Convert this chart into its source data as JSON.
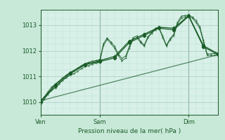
{
  "bg_color": "#c8e8d8",
  "plot_bg_color": "#d8f0e8",
  "grid_color_major": "#a8ccbc",
  "grid_color_minor": "#b8dece",
  "line_color": "#1a5c28",
  "xlabel": "Pression niveau de la mer( hPa )",
  "ylim": [
    1009.5,
    1013.6
  ],
  "xlim": [
    0,
    48
  ],
  "ytick_positions": [
    1010,
    1011,
    1012,
    1013
  ],
  "ytick_labels": [
    "1010",
    "1011",
    "1012",
    "1013"
  ],
  "xtick_positions": [
    0,
    16,
    40
  ],
  "xtick_labels": [
    "Ven",
    "Sam",
    "Dim"
  ],
  "vline_color": "#668877",
  "trend_x": [
    0,
    48
  ],
  "trend_y": [
    1010.05,
    1011.85
  ],
  "series_dense": [
    {
      "x": [
        0,
        1,
        2,
        3,
        4,
        5,
        6,
        7,
        8,
        9,
        10,
        11,
        12,
        13,
        14,
        15,
        16,
        17,
        18,
        19,
        20,
        21,
        22,
        23,
        24,
        25,
        26,
        27,
        28,
        29,
        30,
        31,
        32,
        33,
        34,
        35,
        36,
        37,
        38,
        39,
        40,
        41,
        42,
        43,
        44,
        45,
        46,
        47,
        48
      ],
      "y": [
        1009.9,
        1010.1,
        1010.3,
        1010.45,
        1010.55,
        1010.7,
        1010.85,
        1010.95,
        1011.05,
        1011.1,
        1011.2,
        1011.3,
        1011.38,
        1011.42,
        1011.48,
        1011.52,
        1011.55,
        1012.2,
        1012.45,
        1012.28,
        1012.1,
        1011.82,
        1011.6,
        1011.72,
        1012.1,
        1012.45,
        1012.52,
        1012.32,
        1012.18,
        1012.5,
        1012.68,
        1012.82,
        1012.88,
        1012.52,
        1012.18,
        1012.42,
        1012.6,
        1013.05,
        1013.28,
        1013.32,
        1013.32,
        1013.28,
        1013.1,
        1012.88,
        1012.35,
        1011.82,
        1011.82,
        1011.82,
        1011.88
      ]
    },
    {
      "x": [
        0,
        1,
        2,
        3,
        4,
        5,
        6,
        7,
        8,
        9,
        10,
        11,
        12,
        13,
        14,
        15,
        16,
        17,
        18,
        19,
        20,
        21,
        22,
        23,
        24,
        25,
        26,
        27,
        28,
        29,
        30,
        31,
        32,
        33,
        34,
        35,
        36,
        37,
        38,
        39,
        40,
        41,
        42,
        43,
        44,
        45,
        46,
        47,
        48
      ],
      "y": [
        1010.05,
        1010.2,
        1010.4,
        1010.58,
        1010.7,
        1010.82,
        1010.95,
        1011.05,
        1011.15,
        1011.22,
        1011.32,
        1011.42,
        1011.5,
        1011.55,
        1011.6,
        1011.62,
        1011.65,
        1012.28,
        1012.5,
        1012.35,
        1012.18,
        1011.88,
        1011.7,
        1011.8,
        1012.18,
        1012.52,
        1012.58,
        1012.38,
        1012.22,
        1012.55,
        1012.72,
        1012.88,
        1012.92,
        1012.58,
        1012.22,
        1012.48,
        1012.65,
        1013.12,
        1013.35,
        1013.38,
        1013.38,
        1013.32,
        1013.18,
        1012.95,
        1012.42,
        1011.88,
        1011.88,
        1011.9,
        1011.92
      ]
    }
  ],
  "series_coarse": [
    {
      "x": [
        0,
        4,
        8,
        12,
        16,
        20,
        24,
        28,
        32,
        36,
        40,
        44,
        48
      ],
      "y": [
        1010.0,
        1010.62,
        1011.1,
        1011.45,
        1011.58,
        1011.72,
        1012.32,
        1012.6,
        1012.88,
        1012.82,
        1013.35,
        1012.15,
        1011.85
      ]
    },
    {
      "x": [
        0,
        4,
        8,
        12,
        16,
        20,
        24,
        28,
        32,
        36,
        40,
        44,
        48
      ],
      "y": [
        1010.02,
        1010.68,
        1011.15,
        1011.48,
        1011.62,
        1011.78,
        1012.38,
        1012.65,
        1012.92,
        1012.88,
        1013.38,
        1012.2,
        1011.88
      ]
    }
  ]
}
